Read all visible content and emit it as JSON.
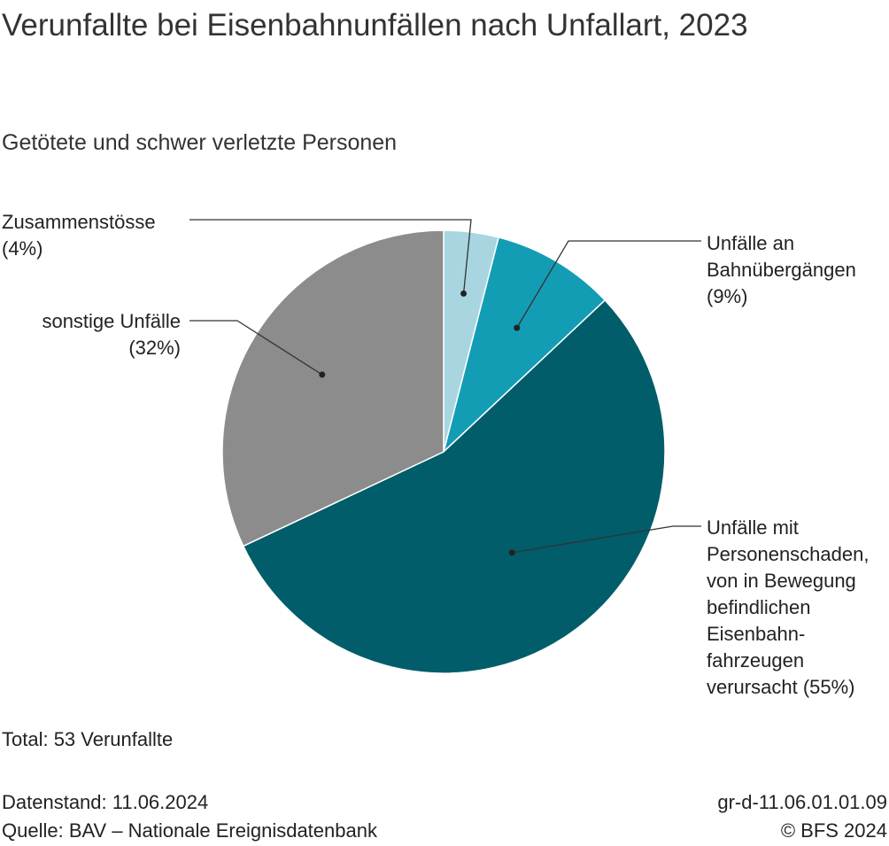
{
  "chart_data": {
    "type": "pie",
    "title": "Verunfallte bei Eisenbahnunfällen nach Unfallart, 2023",
    "subtitle": "Getötete und schwer verletzte Personen",
    "slices": [
      {
        "label": "Zusammenstösse",
        "value": 4,
        "percent_label": "(4%)",
        "color": "#a8d5e0"
      },
      {
        "label": "Unfälle an Bahnübergängen",
        "value": 9,
        "percent_label": "(9%)",
        "color": "#139db5"
      },
      {
        "label": "Unfälle mit Personenschaden, von in Bewegung befindlichen Eisenbahnfahrzeugen verursacht",
        "value": 55,
        "percent_label": "(55%)",
        "color": "#005d69"
      },
      {
        "label": "sonstige Unfälle",
        "value": 32,
        "percent_label": "(32%)",
        "color": "#8c8c8c"
      }
    ]
  },
  "labels": {
    "zusammenstoesse": {
      "line1": "Zusammenstösse",
      "line2": "(4%)"
    },
    "bahnuebergaenge": {
      "line1": "Unfälle an",
      "line2": "Bahnübergängen",
      "line3": "(9%)"
    },
    "personenschaden": {
      "line1": "Unfälle mit",
      "line2": "Personenschaden,",
      "line3": "von in Bewegung",
      "line4": "befindlichen",
      "line5": "Eisenbahn-",
      "line6": "fahrzeugen",
      "line7": "verursacht (55%)"
    },
    "sonstige": {
      "line1": "sonstige Unfälle",
      "line2": "(32%)"
    }
  },
  "total": "Total: 53 Verunfallte",
  "footer": {
    "datenstand": "Datenstand: 11.06.2024",
    "quelle": "Quelle: BAV – Nationale Ereignisdatenbank",
    "code": "gr-d-11.06.01.01.09",
    "copyright": "© BFS 2024"
  }
}
